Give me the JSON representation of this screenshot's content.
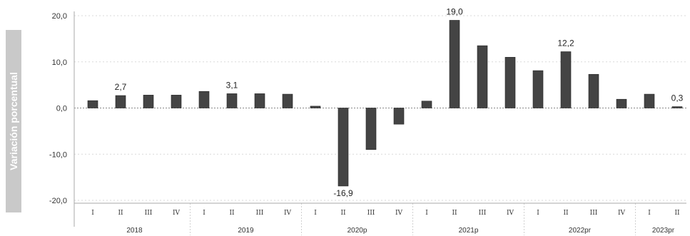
{
  "chart_data": {
    "type": "bar",
    "ylabel": "Variación porcentual",
    "ylim": [
      -20,
      20
    ],
    "yticks": [
      {
        "value": 20,
        "label": "20,0"
      },
      {
        "value": 10,
        "label": "10,0"
      },
      {
        "value": 0,
        "label": "0,0"
      },
      {
        "value": -10,
        "label": "-10,0"
      },
      {
        "value": -20,
        "label": "-20,0"
      }
    ],
    "grid": true,
    "bar_color": "#444444",
    "groups": [
      {
        "label": "2018",
        "quarters": [
          "I",
          "II",
          "III",
          "IV"
        ]
      },
      {
        "label": "2019",
        "quarters": [
          "I",
          "II",
          "III",
          "IV"
        ]
      },
      {
        "label": "2020p",
        "quarters": [
          "I",
          "II",
          "III",
          "IV"
        ]
      },
      {
        "label": "2021p",
        "quarters": [
          "I",
          "II",
          "III",
          "IV"
        ]
      },
      {
        "label": "2022pr",
        "quarters": [
          "I",
          "II",
          "III",
          "IV"
        ]
      },
      {
        "label": "2023pr",
        "quarters": [
          "I",
          "II"
        ]
      }
    ],
    "values": [
      1.6,
      2.7,
      2.8,
      2.8,
      3.6,
      3.1,
      3.1,
      3.0,
      0.4,
      -16.9,
      -9.0,
      -3.5,
      1.5,
      19.0,
      13.5,
      11.0,
      8.1,
      12.2,
      7.3,
      1.9,
      3.0,
      0.3
    ],
    "data_labels": [
      {
        "index": 1,
        "text": "2,7"
      },
      {
        "index": 5,
        "text": "3,1"
      },
      {
        "index": 9,
        "text": "-16,9"
      },
      {
        "index": 13,
        "text": "19,0"
      },
      {
        "index": 17,
        "text": "12,2"
      },
      {
        "index": 21,
        "text": "0,3"
      }
    ]
  }
}
